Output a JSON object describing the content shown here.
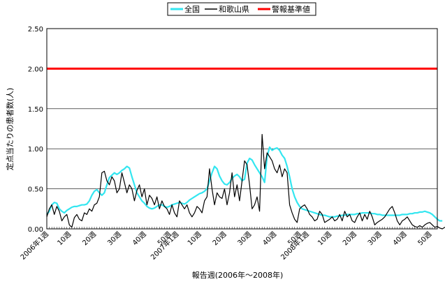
{
  "chart_data": {
    "type": "line",
    "title": "",
    "xlabel": "報告週(2006年～2008年)",
    "ylabel": "定点当たりの患者数(人)",
    "ylim": [
      0,
      2.5
    ],
    "yticks": [
      "0.00",
      "0.50",
      "1.00",
      "1.50",
      "2.00",
      "2.50"
    ],
    "ytick_values": [
      0,
      0.5,
      1.0,
      1.5,
      2.0,
      2.5
    ],
    "grid": true,
    "legend_placement": "top",
    "x_tick_labels": [
      {
        "week": 1,
        "label": "2006年1週"
      },
      {
        "week": 10,
        "label": "10週"
      },
      {
        "week": 20,
        "label": "20週"
      },
      {
        "week": 30,
        "label": "30週"
      },
      {
        "week": 40,
        "label": "40週"
      },
      {
        "week": 50,
        "label": "50週"
      },
      {
        "week": 53,
        "label": "2007年1週"
      },
      {
        "week": 62,
        "label": "10週"
      },
      {
        "week": 72,
        "label": "20週"
      },
      {
        "week": 82,
        "label": "30週"
      },
      {
        "week": 92,
        "label": "40週"
      },
      {
        "week": 102,
        "label": "50週"
      },
      {
        "week": 105,
        "label": "2008年1週"
      },
      {
        "week": 114,
        "label": "10週"
      },
      {
        "week": 124,
        "label": "20週"
      },
      {
        "week": 134,
        "label": "30週"
      },
      {
        "week": 144,
        "label": "40週"
      },
      {
        "week": 154,
        "label": "50週"
      }
    ],
    "x_range": [
      1,
      157
    ],
    "series": [
      {
        "name": "全国",
        "color": "#33e6f0",
        "values": [
          0.18,
          0.22,
          0.3,
          0.33,
          0.32,
          0.25,
          0.22,
          0.2,
          0.23,
          0.25,
          0.27,
          0.28,
          0.28,
          0.29,
          0.3,
          0.3,
          0.31,
          0.35,
          0.42,
          0.47,
          0.49,
          0.45,
          0.42,
          0.45,
          0.55,
          0.64,
          0.67,
          0.7,
          0.68,
          0.7,
          0.73,
          0.75,
          0.78,
          0.76,
          0.65,
          0.55,
          0.45,
          0.4,
          0.35,
          0.32,
          0.28,
          0.26,
          0.25,
          0.26,
          0.28,
          0.3,
          0.3,
          0.28,
          0.27,
          0.28,
          0.3,
          0.31,
          0.32,
          0.33,
          0.32,
          0.31,
          0.33,
          0.36,
          0.38,
          0.4,
          0.42,
          0.44,
          0.45,
          0.47,
          0.5,
          0.6,
          0.7,
          0.78,
          0.75,
          0.66,
          0.6,
          0.56,
          0.55,
          0.58,
          0.63,
          0.66,
          0.68,
          0.65,
          0.6,
          0.62,
          0.82,
          0.88,
          0.86,
          0.8,
          0.75,
          0.7,
          0.65,
          0.58,
          0.9,
          1.02,
          0.98,
          1.0,
          1.01,
          0.98,
          0.92,
          0.88,
          0.78,
          0.65,
          0.5,
          0.4,
          0.33,
          0.28,
          0.25,
          0.24,
          0.23,
          0.22,
          0.21,
          0.2,
          0.19,
          0.18,
          0.17,
          0.17,
          0.16,
          0.15,
          0.15,
          0.15,
          0.16,
          0.16,
          0.17,
          0.17,
          0.18,
          0.18,
          0.18,
          0.18,
          0.19,
          0.19,
          0.2,
          0.2,
          0.2,
          0.2,
          0.19,
          0.19,
          0.18,
          0.18,
          0.17,
          0.17,
          0.17,
          0.17,
          0.17,
          0.17,
          0.17,
          0.17,
          0.18,
          0.18,
          0.18,
          0.19,
          0.19,
          0.2,
          0.2,
          0.21,
          0.21,
          0.22,
          0.21,
          0.2,
          0.18,
          0.15,
          0.12,
          0.1,
          0.1
        ]
      },
      {
        "name": "和歌山県",
        "color": "#000000",
        "values": [
          0.15,
          0.25,
          0.3,
          0.18,
          0.28,
          0.22,
          0.1,
          0.15,
          0.18,
          0.05,
          0.02,
          0.14,
          0.18,
          0.12,
          0.1,
          0.2,
          0.18,
          0.25,
          0.22,
          0.3,
          0.32,
          0.4,
          0.7,
          0.72,
          0.6,
          0.55,
          0.65,
          0.6,
          0.45,
          0.5,
          0.7,
          0.58,
          0.45,
          0.55,
          0.5,
          0.35,
          0.48,
          0.55,
          0.4,
          0.5,
          0.3,
          0.42,
          0.38,
          0.3,
          0.4,
          0.25,
          0.35,
          0.28,
          0.25,
          0.18,
          0.3,
          0.2,
          0.15,
          0.35,
          0.3,
          0.25,
          0.3,
          0.2,
          0.15,
          0.2,
          0.28,
          0.25,
          0.2,
          0.35,
          0.4,
          0.75,
          0.5,
          0.3,
          0.45,
          0.4,
          0.38,
          0.5,
          0.3,
          0.45,
          0.7,
          0.4,
          0.55,
          0.35,
          0.6,
          0.85,
          0.8,
          0.55,
          0.25,
          0.3,
          0.4,
          0.22,
          1.18,
          0.75,
          0.95,
          0.9,
          0.85,
          0.75,
          0.7,
          0.8,
          0.65,
          0.75,
          0.7,
          0.3,
          0.2,
          0.12,
          0.08,
          0.25,
          0.28,
          0.3,
          0.25,
          0.18,
          0.15,
          0.1,
          0.12,
          0.22,
          0.18,
          0.08,
          0.1,
          0.12,
          0.15,
          0.1,
          0.12,
          0.18,
          0.1,
          0.22,
          0.15,
          0.18,
          0.1,
          0.08,
          0.15,
          0.2,
          0.1,
          0.18,
          0.12,
          0.22,
          0.15,
          0.05,
          0.08,
          0.1,
          0.12,
          0.15,
          0.2,
          0.25,
          0.28,
          0.2,
          0.1,
          0.05,
          0.1,
          0.12,
          0.15,
          0.1,
          0.05,
          0.03,
          0.02,
          0.04,
          0.02,
          0.05,
          0.07,
          0.08,
          0.05,
          0.02,
          0.03,
          0.01,
          0.0,
          0.02,
          0.02,
          0.05,
          0.08
        ]
      },
      {
        "name": "警報基準値",
        "color": "#ff0000",
        "values": [
          2.0
        ],
        "constant": 2.0
      }
    ]
  }
}
